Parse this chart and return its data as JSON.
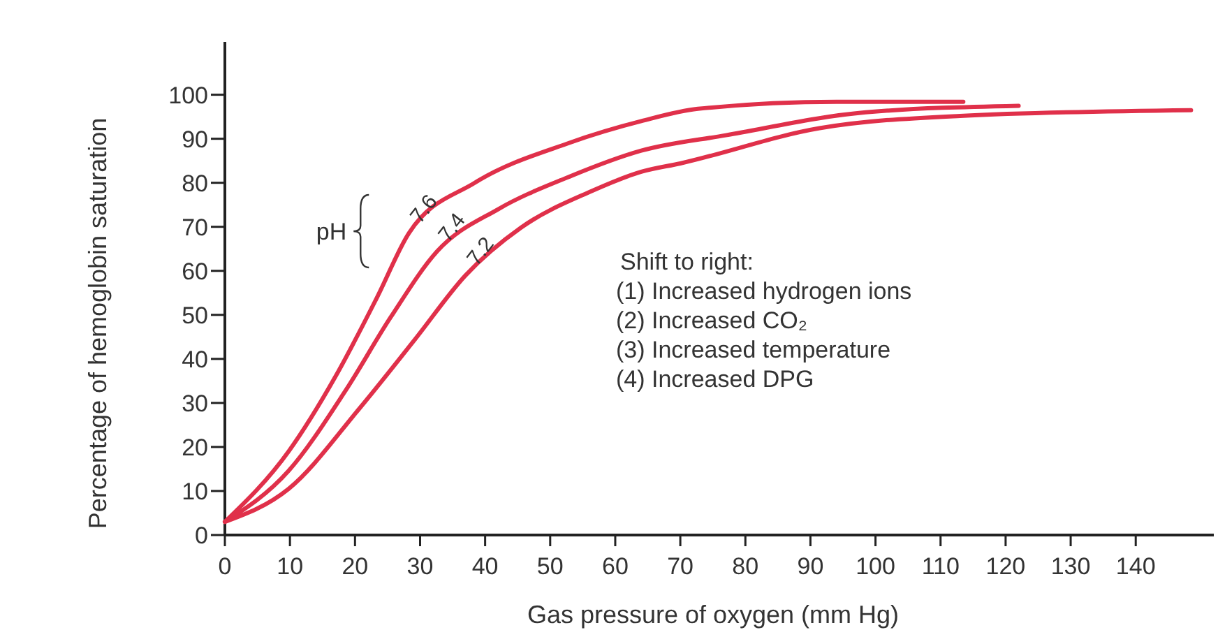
{
  "chart_data": {
    "type": "line",
    "xlabel": "Gas pressure of oxygen (mm Hg)",
    "ylabel": "Percentage of hemoglobin saturation",
    "xlim": [
      0,
      152
    ],
    "ylim": [
      0,
      112
    ],
    "xticks": [
      0,
      10,
      20,
      30,
      40,
      50,
      60,
      70,
      80,
      90,
      100,
      110,
      120,
      130,
      140
    ],
    "yticks": [
      0,
      10,
      20,
      30,
      40,
      50,
      60,
      70,
      80,
      90,
      100
    ],
    "marker": "none",
    "line_style": "solid",
    "legend": false,
    "grid": false,
    "series": [
      {
        "name": "7.6",
        "color": "#e0304a",
        "x": [
          0,
          9.8,
          17,
          23.4,
          28.3,
          38.4,
          52.8,
          64,
          72.7,
          94,
          113.5
        ],
        "values": [
          3,
          19,
          36,
          54,
          68.6,
          80,
          89,
          94,
          96.8,
          98.4,
          98.4
        ]
      },
      {
        "name": "7.4",
        "color": "#e0304a",
        "x": [
          0,
          9.8,
          18.5,
          25.5,
          32.6,
          42,
          52.8,
          64,
          77,
          98.5,
          122
        ],
        "values": [
          3,
          14.6,
          32.7,
          49.5,
          64.4,
          74,
          81.3,
          87.3,
          90.8,
          96,
          97.5
        ]
      },
      {
        "name": "7.2",
        "color": "#e0304a",
        "x": [
          0,
          9.8,
          20.6,
          29.2,
          37,
          45.5,
          56.2,
          64,
          70,
          91.4,
          113,
          148.5
        ],
        "values": [
          3,
          10.5,
          28.6,
          44.4,
          59,
          69.8,
          78,
          82.5,
          84.4,
          92.4,
          95.2,
          96.5
        ]
      }
    ],
    "annotations": [
      "pH",
      "Shift to right:",
      "(1) Increased hydrogen ions",
      "(2) Increased CO₂",
      "(3) Increased temperature",
      "(4) Increased DPG"
    ]
  }
}
